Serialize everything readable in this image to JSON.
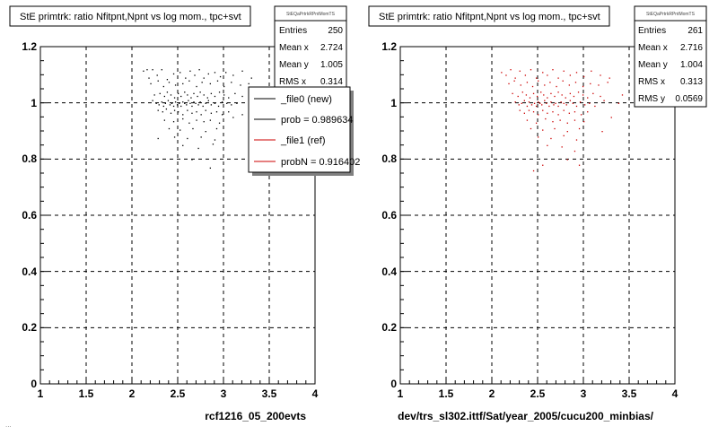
{
  "footer_text": "...",
  "colors": {
    "ref": "#cc0000",
    "new": "#000000",
    "grid": "#000000"
  },
  "chart_data": [
    {
      "type": "scatter",
      "title": "StE primtrk: ratio Nfitpnt,Npnt vs log mom., tpc+svt",
      "xlabel": "rcf1216_05_200evts",
      "ylabel": "",
      "xlim": [
        1,
        4
      ],
      "ylim": [
        0,
        1.2
      ],
      "xticks": [
        "1",
        "1.5",
        "2",
        "2.5",
        "3",
        "3.5",
        "4"
      ],
      "yticks": [
        "0",
        "0.2",
        "0.4",
        "0.6",
        "0.8",
        "1",
        "1.2"
      ],
      "grid": true,
      "color": "#000000",
      "stats": {
        "name": "StEQaPrtrkRPntMomTS",
        "rows": [
          {
            "label": "Entries",
            "value": "250"
          },
          {
            "label": "Mean x",
            "value": "2.724"
          },
          {
            "label": "Mean y",
            "value": "1.005"
          },
          {
            "label": "RMS x",
            "value": "0.314"
          }
        ]
      },
      "legend": {
        "placement": "top-right",
        "entries": [
          {
            "label": "_file0 (new)",
            "color": "#000000"
          },
          {
            "label": "prob = 0.989634",
            "color": "#000000"
          },
          {
            "label": "_file1 (ref)",
            "color": "#cc0000"
          },
          {
            "label": "probN = 0.916402",
            "color": "#cc0000"
          }
        ]
      },
      "points": [
        [
          2.12,
          1.115
        ],
        [
          2.16,
          1.12
        ],
        [
          2.18,
          1.09
        ],
        [
          2.22,
          1.12
        ],
        [
          2.27,
          1.1
        ],
        [
          2.32,
          1.12
        ],
        [
          2.38,
          1.085
        ],
        [
          2.45,
          1.105
        ],
        [
          2.52,
          1.11
        ],
        [
          2.58,
          1.09
        ],
        [
          2.63,
          1.115
        ],
        [
          2.68,
          1.1
        ],
        [
          2.73,
          1.12
        ],
        [
          2.78,
          1.09
        ],
        [
          2.83,
          1.105
        ],
        [
          2.9,
          1.11
        ],
        [
          2.96,
          1.095
        ],
        [
          3.02,
          1.11
        ],
        [
          3.1,
          1.1
        ],
        [
          3.2,
          1.115
        ],
        [
          3.3,
          1.09
        ],
        [
          2.2,
          1.07
        ],
        [
          2.28,
          1.08
        ],
        [
          2.34,
          1.06
        ],
        [
          2.4,
          1.075
        ],
        [
          2.47,
          1.065
        ],
        [
          2.55,
          1.07
        ],
        [
          2.62,
          1.08
        ],
        [
          2.7,
          1.06
        ],
        [
          2.76,
          1.075
        ],
        [
          2.85,
          1.07
        ],
        [
          2.93,
          1.08
        ],
        [
          3.0,
          1.06
        ],
        [
          3.08,
          1.075
        ],
        [
          3.18,
          1.065
        ],
        [
          3.27,
          1.07
        ],
        [
          2.24,
          1.03
        ],
        [
          2.3,
          1.035
        ],
        [
          2.35,
          1.025
        ],
        [
          2.38,
          1.04
        ],
        [
          2.42,
          1.03
        ],
        [
          2.46,
          1.02
        ],
        [
          2.5,
          1.035
        ],
        [
          2.53,
          1.025
        ],
        [
          2.57,
          1.04
        ],
        [
          2.6,
          1.03
        ],
        [
          2.64,
          1.02
        ],
        [
          2.67,
          1.035
        ],
        [
          2.71,
          1.025
        ],
        [
          2.74,
          1.04
        ],
        [
          2.78,
          1.03
        ],
        [
          2.82,
          1.02
        ],
        [
          2.86,
          1.035
        ],
        [
          2.9,
          1.025
        ],
        [
          2.95,
          1.04
        ],
        [
          3.0,
          1.03
        ],
        [
          3.05,
          1.02
        ],
        [
          3.12,
          1.035
        ],
        [
          3.2,
          1.025
        ],
        [
          2.22,
          1.01
        ],
        [
          2.26,
          1.0
        ],
        [
          2.29,
          0.995
        ],
        [
          2.32,
          1.005
        ],
        [
          2.34,
          0.99
        ],
        [
          2.36,
          1.0
        ],
        [
          2.39,
          1.01
        ],
        [
          2.41,
          0.995
        ],
        [
          2.43,
          1.0
        ],
        [
          2.45,
          0.99
        ],
        [
          2.47,
          1.005
        ],
        [
          2.49,
          0.995
        ],
        [
          2.51,
          1.0
        ],
        [
          2.53,
          0.99
        ],
        [
          2.55,
          1.005
        ],
        [
          2.57,
          1.0
        ],
        [
          2.59,
          0.995
        ],
        [
          2.61,
          1.01
        ],
        [
          2.63,
          1.0
        ],
        [
          2.65,
          0.99
        ],
        [
          2.67,
          1.005
        ],
        [
          2.69,
          1.0
        ],
        [
          2.72,
          0.995
        ],
        [
          2.74,
          1.005
        ],
        [
          2.77,
          0.99
        ],
        [
          2.8,
          1.0
        ],
        [
          2.83,
          1.01
        ],
        [
          2.86,
          0.995
        ],
        [
          2.9,
          1.0
        ],
        [
          2.94,
          0.99
        ],
        [
          2.98,
          1.005
        ],
        [
          3.03,
          1.0
        ],
        [
          3.08,
          0.995
        ],
        [
          3.14,
          1.0
        ],
        [
          2.28,
          0.975
        ],
        [
          2.33,
          0.97
        ],
        [
          2.37,
          0.98
        ],
        [
          2.42,
          0.965
        ],
        [
          2.46,
          0.975
        ],
        [
          2.5,
          0.97
        ],
        [
          2.55,
          0.96
        ],
        [
          2.6,
          0.975
        ],
        [
          2.65,
          0.965
        ],
        [
          2.7,
          0.97
        ],
        [
          2.75,
          0.96
        ],
        [
          2.8,
          0.975
        ],
        [
          2.86,
          0.965
        ],
        [
          2.92,
          0.97
        ],
        [
          2.98,
          0.96
        ],
        [
          3.05,
          0.97
        ],
        [
          2.35,
          0.94
        ],
        [
          2.45,
          0.935
        ],
        [
          2.55,
          0.945
        ],
        [
          2.62,
          0.93
        ],
        [
          2.7,
          0.94
        ],
        [
          2.78,
          0.935
        ],
        [
          2.85,
          0.94
        ],
        [
          2.95,
          0.93
        ],
        [
          2.4,
          0.91
        ],
        [
          2.52,
          0.905
        ],
        [
          2.66,
          0.91
        ],
        [
          2.8,
          0.9
        ],
        [
          2.92,
          0.91
        ],
        [
          2.46,
          0.88
        ],
        [
          2.6,
          0.875
        ],
        [
          2.75,
          0.88
        ],
        [
          2.9,
          0.87
        ],
        [
          2.28,
          0.875
        ],
        [
          2.55,
          0.85
        ],
        [
          2.72,
          0.84
        ],
        [
          2.88,
          0.855
        ],
        [
          2.65,
          0.8
        ],
        [
          2.85,
          0.77
        ],
        [
          3.1,
          0.95
        ],
        [
          3.2,
          0.96
        ],
        [
          3.3,
          1.0
        ],
        [
          3.35,
          1.04
        ],
        [
          3.4,
          1.01
        ]
      ]
    },
    {
      "type": "scatter",
      "title": "StE primtrk: ratio Nfitpnt,Npnt vs log mom., tpc+svt",
      "xlabel": "dev/trs_sl302.ittf/Sat/year_2005/cucu200_minbias/",
      "ylabel": "",
      "xlim": [
        1,
        4
      ],
      "ylim": [
        0,
        1.2
      ],
      "xticks": [
        "1",
        "1.5",
        "2",
        "2.5",
        "3",
        "3.5",
        "4"
      ],
      "yticks": [
        "0",
        "0.2",
        "0.4",
        "0.6",
        "0.8",
        "1",
        "1.2"
      ],
      "grid": true,
      "color": "#cc0000",
      "stats": {
        "name": "StEQaPrtrkRPntMomTS",
        "rows": [
          {
            "label": "Entries",
            "value": "261"
          },
          {
            "label": "Mean x",
            "value": "2.716"
          },
          {
            "label": "Mean y",
            "value": "1.004"
          },
          {
            "label": "RMS x",
            "value": "0.313"
          },
          {
            "label": "RMS y",
            "value": "0.0569"
          }
        ]
      },
      "points": [
        [
          2.1,
          1.11
        ],
        [
          2.15,
          1.1
        ],
        [
          2.2,
          1.12
        ],
        [
          2.25,
          1.09
        ],
        [
          2.3,
          1.115
        ],
        [
          2.36,
          1.1
        ],
        [
          2.42,
          1.12
        ],
        [
          2.48,
          1.09
        ],
        [
          2.55,
          1.11
        ],
        [
          2.6,
          1.1
        ],
        [
          2.66,
          1.12
        ],
        [
          2.72,
          1.09
        ],
        [
          2.78,
          1.115
        ],
        [
          2.85,
          1.1
        ],
        [
          2.92,
          1.11
        ],
        [
          3.0,
          1.095
        ],
        [
          3.08,
          1.115
        ],
        [
          3.18,
          1.1
        ],
        [
          3.28,
          1.09
        ],
        [
          2.18,
          1.07
        ],
        [
          2.24,
          1.08
        ],
        [
          2.31,
          1.065
        ],
        [
          2.38,
          1.075
        ],
        [
          2.44,
          1.06
        ],
        [
          2.5,
          1.08
        ],
        [
          2.57,
          1.065
        ],
        [
          2.63,
          1.075
        ],
        [
          2.7,
          1.06
        ],
        [
          2.77,
          1.08
        ],
        [
          2.84,
          1.065
        ],
        [
          2.91,
          1.075
        ],
        [
          2.99,
          1.06
        ],
        [
          3.07,
          1.07
        ],
        [
          3.16,
          1.065
        ],
        [
          3.26,
          1.075
        ],
        [
          2.22,
          1.035
        ],
        [
          2.28,
          1.025
        ],
        [
          2.33,
          1.04
        ],
        [
          2.37,
          1.03
        ],
        [
          2.41,
          1.02
        ],
        [
          2.45,
          1.035
        ],
        [
          2.49,
          1.025
        ],
        [
          2.53,
          1.04
        ],
        [
          2.56,
          1.03
        ],
        [
          2.6,
          1.02
        ],
        [
          2.64,
          1.035
        ],
        [
          2.68,
          1.025
        ],
        [
          2.72,
          1.04
        ],
        [
          2.76,
          1.03
        ],
        [
          2.8,
          1.02
        ],
        [
          2.85,
          1.035
        ],
        [
          2.89,
          1.025
        ],
        [
          2.94,
          1.04
        ],
        [
          2.99,
          1.03
        ],
        [
          3.04,
          1.02
        ],
        [
          3.1,
          1.035
        ],
        [
          3.18,
          1.025
        ],
        [
          2.25,
          1.005
        ],
        [
          2.29,
          0.995
        ],
        [
          2.32,
          1.0
        ],
        [
          2.35,
          1.01
        ],
        [
          2.38,
          0.99
        ],
        [
          2.4,
          1.005
        ],
        [
          2.43,
          0.995
        ],
        [
          2.46,
          1.0
        ],
        [
          2.48,
          0.99
        ],
        [
          2.5,
          1.005
        ],
        [
          2.52,
          1.0
        ],
        [
          2.54,
          0.995
        ],
        [
          2.57,
          1.01
        ],
        [
          2.59,
          1.0
        ],
        [
          2.62,
          0.99
        ],
        [
          2.64,
          1.005
        ],
        [
          2.67,
          0.995
        ],
        [
          2.69,
          1.0
        ],
        [
          2.72,
          0.99
        ],
        [
          2.75,
          1.005
        ],
        [
          2.78,
          1.0
        ],
        [
          2.81,
          0.995
        ],
        [
          2.85,
          1.01
        ],
        [
          2.88,
          1.0
        ],
        [
          2.92,
          0.99
        ],
        [
          2.96,
          1.005
        ],
        [
          3.01,
          0.995
        ],
        [
          3.06,
          1.0
        ],
        [
          3.12,
          0.99
        ],
        [
          2.3,
          0.975
        ],
        [
          2.35,
          0.965
        ],
        [
          2.4,
          0.975
        ],
        [
          2.45,
          0.97
        ],
        [
          2.5,
          0.96
        ],
        [
          2.55,
          0.975
        ],
        [
          2.6,
          0.965
        ],
        [
          2.66,
          0.97
        ],
        [
          2.72,
          0.96
        ],
        [
          2.78,
          0.975
        ],
        [
          2.84,
          0.965
        ],
        [
          2.9,
          0.97
        ],
        [
          2.97,
          0.96
        ],
        [
          3.04,
          0.97
        ],
        [
          2.38,
          0.94
        ],
        [
          2.48,
          0.93
        ],
        [
          2.58,
          0.945
        ],
        [
          2.66,
          0.935
        ],
        [
          2.74,
          0.94
        ],
        [
          2.82,
          0.93
        ],
        [
          2.9,
          0.94
        ],
        [
          3.0,
          0.935
        ],
        [
          2.42,
          0.91
        ],
        [
          2.55,
          0.905
        ],
        [
          2.68,
          0.91
        ],
        [
          2.82,
          0.9
        ],
        [
          2.95,
          0.91
        ],
        [
          2.5,
          0.88
        ],
        [
          2.64,
          0.875
        ],
        [
          2.78,
          0.885
        ],
        [
          2.92,
          0.87
        ],
        [
          2.6,
          0.85
        ],
        [
          2.76,
          0.845
        ],
        [
          2.9,
          0.83
        ],
        [
          2.55,
          0.78
        ],
        [
          2.95,
          0.78
        ],
        [
          2.45,
          0.76
        ],
        [
          2.82,
          0.8
        ],
        [
          3.2,
          0.9
        ],
        [
          3.3,
          0.95
        ],
        [
          3.38,
          1.0
        ],
        [
          3.42,
          1.03
        ],
        [
          3.22,
          1.01
        ]
      ]
    }
  ]
}
